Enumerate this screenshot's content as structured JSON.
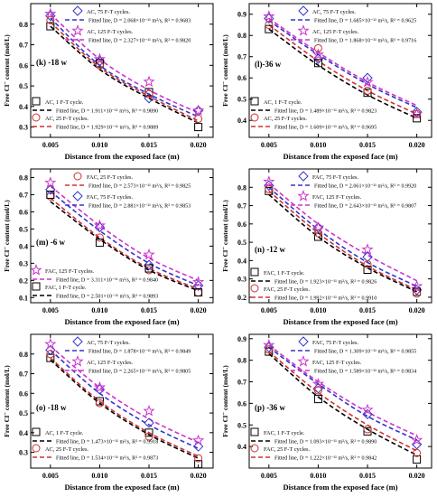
{
  "chart_data": [
    {
      "type": "line+scatter",
      "panel_label": "(k) -18 w",
      "xlabel": "Distance from the exposed face (m)",
      "ylabel": "Free Cl⁻ content (mol/L)",
      "xlim": [
        0.003,
        0.0215
      ],
      "ylim": [
        0.25,
        0.9
      ],
      "xticks": [
        "0.005",
        "0.010",
        "0.015",
        "0.020"
      ],
      "yticks": [
        "0.3",
        "0.4",
        "0.5",
        "0.6",
        "0.7",
        "0.8"
      ],
      "x": [
        0.005,
        0.01,
        0.015,
        0.02
      ],
      "series": [
        {
          "name": "AC, 75 F-T cycles.",
          "marker": "diamond",
          "color": "#3333cc",
          "values": [
            0.84,
            0.62,
            0.44,
            0.38
          ]
        },
        {
          "name": "AC, 125 F-T cycles.",
          "marker": "star",
          "color": "#cc33cc",
          "values": [
            0.85,
            0.63,
            0.52,
            0.38
          ]
        },
        {
          "name": "AC, 1 F-T cycle.",
          "marker": "square",
          "color": "#000000",
          "values": [
            0.79,
            0.61,
            0.47,
            0.3
          ]
        },
        {
          "name": "AC, 25 F-T cycles.",
          "marker": "circle",
          "color": "#cc3333",
          "values": [
            0.82,
            0.6,
            0.46,
            0.34
          ]
        }
      ],
      "fits": [
        {
          "name": "Fitted line, D = 2.068×10⁻¹¹ m²/s, R² = 0.9683",
          "color": "#3333cc",
          "dash": "5,3",
          "values": [
            0.83,
            0.6,
            0.46,
            0.35
          ]
        },
        {
          "name": "Fitted line, D = 2.327×10⁻¹¹ m²/s, R² = 0.9820",
          "color": "#cc33cc",
          "dash": "5,3",
          "values": [
            0.85,
            0.63,
            0.48,
            0.37
          ]
        },
        {
          "name": "Fitted line, D = 1.911×10⁻¹¹ m²/s, R² = 0.9890",
          "color": "#000000",
          "dash": "5,3",
          "values": [
            0.79,
            0.58,
            0.44,
            0.32
          ]
        },
        {
          "name": "Fitted line, D = 1.929×10⁻¹¹ m²/s, R² = 0.9889",
          "color": "#cc3333",
          "dash": "5,3",
          "values": [
            0.81,
            0.59,
            0.45,
            0.33
          ]
        }
      ]
    },
    {
      "type": "line+scatter",
      "panel_label": "(l)-36 w",
      "xlabel": "Distance from the exposed face (m)",
      "ylabel": "Free Cl⁻ content (mol/L)",
      "xlim": [
        0.003,
        0.0215
      ],
      "ylim": [
        0.32,
        0.95
      ],
      "xticks": [
        "0.005",
        "0.010",
        "0.015",
        "0.020"
      ],
      "yticks": [
        "0.4",
        "0.5",
        "0.6",
        "0.7",
        "0.8",
        "0.9"
      ],
      "x": [
        0.005,
        0.01,
        0.015,
        0.02
      ],
      "series": [
        {
          "name": "AC, 75 F-T cycles.",
          "marker": "diamond",
          "color": "#3333cc",
          "values": [
            0.88,
            0.69,
            0.6,
            0.44
          ]
        },
        {
          "name": "AC, 125 F-T cycles.",
          "marker": "star",
          "color": "#cc33cc",
          "values": [
            0.89,
            0.71,
            0.58,
            0.43
          ]
        },
        {
          "name": "AC, 1 F-T cycle.",
          "marker": "square",
          "color": "#000000",
          "values": [
            0.83,
            0.67,
            0.53,
            0.41
          ]
        },
        {
          "name": "AC, 25 F-T cycles.",
          "marker": "circle",
          "color": "#cc3333",
          "values": [
            0.85,
            0.74,
            0.54,
            0.43
          ]
        }
      ],
      "fits": [
        {
          "name": "Fitted line, D = 1.685×10⁻¹¹ m²/s, R² = 0.9625",
          "color": "#3333cc",
          "dash": "5,3",
          "values": [
            0.87,
            0.71,
            0.57,
            0.46
          ]
        },
        {
          "name": "Fitted line, D = 1.868×10⁻¹¹ m²/s, R² = 0.9716",
          "color": "#cc33cc",
          "dash": "5,3",
          "values": [
            0.88,
            0.72,
            0.58,
            0.47
          ]
        },
        {
          "name": "Fitted line, D = 1.489×10⁻¹¹ m²/s, R² = 0.9823",
          "color": "#000000",
          "dash": "5,3",
          "values": [
            0.83,
            0.66,
            0.52,
            0.41
          ]
        },
        {
          "name": "Fitted line, D = 1.609×10⁻¹¹ m²/s, R² = 0.9695",
          "color": "#cc3333",
          "dash": "5,3",
          "values": [
            0.85,
            0.68,
            0.54,
            0.43
          ]
        }
      ]
    },
    {
      "type": "line+scatter",
      "panel_label": "(m) -6 w",
      "xlabel": "Distance from the exposed face (m)",
      "ylabel": "Free Cl⁻ content (mol/L)",
      "xlim": [
        0.003,
        0.0215
      ],
      "ylim": [
        0.07,
        0.85
      ],
      "xticks": [
        "0.005",
        "0.010",
        "0.015",
        "0.020"
      ],
      "yticks": [
        "0.1",
        "0.2",
        "0.3",
        "0.4",
        "0.5",
        "0.6",
        "0.7",
        "0.8"
      ],
      "x": [
        0.005,
        0.01,
        0.015,
        0.02
      ],
      "series": [
        {
          "name": "FAC, 25 F-T cycles.",
          "marker": "circle",
          "color": "#cc3333",
          "values": [
            0.69,
            0.45,
            0.26,
            0.13
          ]
        },
        {
          "name": "FAC, 75 F-T cycles.",
          "marker": "diamond",
          "color": "#3333cc",
          "values": [
            0.73,
            0.51,
            0.29,
            0.17
          ]
        },
        {
          "name": "FAC, 125 F-T cycles.",
          "marker": "star",
          "color": "#cc33cc",
          "values": [
            0.77,
            0.52,
            0.35,
            0.19
          ]
        },
        {
          "name": "FAC, 1 F-T cycle.",
          "marker": "square",
          "color": "#000000",
          "values": [
            0.7,
            0.42,
            0.27,
            0.13
          ]
        }
      ],
      "fits": [
        {
          "name": "Fitted line, D = 2.573×10⁻¹¹ m²/s, R² = 0.9825",
          "color": "#cc3333",
          "dash": "5,3",
          "values": [
            0.68,
            0.45,
            0.27,
            0.15
          ]
        },
        {
          "name": "Fitted line, D = 2.881×10⁻¹¹ m²/s, R² = 0.9853",
          "color": "#3333cc",
          "dash": "5,3",
          "values": [
            0.72,
            0.49,
            0.3,
            0.17
          ]
        },
        {
          "name": "Fitted line, D = 3.311×10⁻¹¹ m²/s, R² = 0.9840",
          "color": "#cc33cc",
          "dash": "5,3",
          "values": [
            0.75,
            0.52,
            0.33,
            0.2
          ]
        },
        {
          "name": "Fitted line, D = 2.501×10⁻¹¹ m²/s, R² = 0.9893",
          "color": "#000000",
          "dash": "5,3",
          "values": [
            0.66,
            0.44,
            0.26,
            0.14
          ]
        }
      ]
    },
    {
      "type": "line+scatter",
      "panel_label": "(n) -12 w",
      "xlabel": "Distance from the exposed face (m)",
      "ylabel": "Free Cl⁻ content (mol/L)",
      "xlim": [
        0.003,
        0.0215
      ],
      "ylim": [
        0.17,
        0.9
      ],
      "xticks": [
        "0.005",
        "0.010",
        "0.015",
        "0.020"
      ],
      "yticks": [
        "0.2",
        "0.3",
        "0.4",
        "0.5",
        "0.6",
        "0.7",
        "0.8"
      ],
      "x": [
        0.005,
        0.01,
        0.015,
        0.02
      ],
      "series": [
        {
          "name": "FAC, 75 F-T cycles.",
          "marker": "diamond",
          "color": "#3333cc",
          "values": [
            0.81,
            0.58,
            0.42,
            0.24
          ]
        },
        {
          "name": "FAC, 125 F-T cycles.",
          "marker": "star",
          "color": "#cc33cc",
          "values": [
            0.83,
            0.58,
            0.46,
            0.26
          ]
        },
        {
          "name": "FAC, 1 F-T cycle.",
          "marker": "square",
          "color": "#000000",
          "values": [
            0.78,
            0.53,
            0.35,
            0.23
          ]
        },
        {
          "name": "FAC, 25 F-T cycles.",
          "marker": "circle",
          "color": "#cc3333",
          "values": [
            0.79,
            0.55,
            0.38,
            0.22
          ]
        }
      ],
      "fits": [
        {
          "name": "Fitted line, D = 2.061×10⁻¹¹ m²/s, R² = 0.9920",
          "color": "#3333cc",
          "dash": "5,3",
          "values": [
            0.8,
            0.57,
            0.39,
            0.26
          ]
        },
        {
          "name": "Fitted line, D = 2.643×10⁻¹¹ m²/s, R² = 0.9807",
          "color": "#cc33cc",
          "dash": "5,3",
          "values": [
            0.82,
            0.6,
            0.43,
            0.29
          ]
        },
        {
          "name": "Fitted line, D = 1.923×10⁻¹¹ m²/s, R² = 0.9826",
          "color": "#000000",
          "dash": "5,3",
          "values": [
            0.76,
            0.53,
            0.36,
            0.23
          ]
        },
        {
          "name": "Fitted line, D = 1.992×10⁻¹¹ m²/s, R² = 0.9910",
          "color": "#cc3333",
          "dash": "5,3",
          "values": [
            0.78,
            0.55,
            0.37,
            0.24
          ]
        }
      ]
    },
    {
      "type": "line+scatter",
      "panel_label": "(o) -18 w",
      "xlabel": "Distance from the exposed face (m)",
      "ylabel": "Free Cl⁻ content (mol/L)",
      "xlim": [
        0.003,
        0.0215
      ],
      "ylim": [
        0.22,
        0.9
      ],
      "xticks": [
        "0.005",
        "0.010",
        "0.015",
        "0.020"
      ],
      "yticks": [
        "0.3",
        "0.4",
        "0.5",
        "0.6",
        "0.7",
        "0.8"
      ],
      "x": [
        0.005,
        0.01,
        0.015,
        0.02
      ],
      "series": [
        {
          "name": "AC, 75 F-T cycles.",
          "marker": "diamond",
          "color": "#3333cc",
          "values": [
            0.82,
            0.62,
            0.45,
            0.33
          ]
        },
        {
          "name": "AC, 125 F-T cycles.",
          "marker": "star",
          "color": "#cc33cc",
          "values": [
            0.85,
            0.63,
            0.51,
            0.36
          ]
        },
        {
          "name": "AC, 1 F-T cycle.",
          "marker": "square",
          "color": "#000000",
          "values": [
            0.78,
            0.56,
            0.4,
            0.24
          ]
        },
        {
          "name": "AC, 25 F-T cycles.",
          "marker": "circle",
          "color": "#cc3333",
          "values": [
            0.8,
            0.55,
            0.38,
            0.27
          ]
        }
      ],
      "fits": [
        {
          "name": "Fitted line, D = 1.878×10⁻¹¹ m²/s, R² = 0.9849",
          "color": "#3333cc",
          "dash": "5,3",
          "values": [
            0.82,
            0.6,
            0.44,
            0.32
          ]
        },
        {
          "name": "Fitted line, D = 2.265×10⁻¹¹ m²/s, R² = 0.9805",
          "color": "#cc33cc",
          "dash": "5,3",
          "values": [
            0.84,
            0.63,
            0.47,
            0.35
          ]
        },
        {
          "name": "Fitted line, D = 1.473×10⁻¹¹ m²/s, R² = 0.9918",
          "color": "#000000",
          "dash": "5,3",
          "values": [
            0.77,
            0.55,
            0.39,
            0.27
          ]
        },
        {
          "name": "Fitted line, D = 1.534×10⁻¹¹ m²/s, R² = 0.9873",
          "color": "#cc3333",
          "dash": "5,3",
          "values": [
            0.78,
            0.56,
            0.4,
            0.28
          ]
        }
      ]
    },
    {
      "type": "line+scatter",
      "panel_label": "(p) -36 w",
      "xlabel": "Distance from the exposed face (m)",
      "ylabel": "Free Cl⁻ content (mol/L)",
      "xlim": [
        0.003,
        0.0215
      ],
      "ylim": [
        0.3,
        0.92
      ],
      "xticks": [
        "0.005",
        "0.010",
        "0.015",
        "0.020"
      ],
      "yticks": [
        "0.4",
        "0.5",
        "0.6",
        "0.7",
        "0.8",
        "0.9"
      ],
      "x": [
        0.005,
        0.01,
        0.015,
        0.02
      ],
      "series": [
        {
          "name": "FAC, 75 F-T cycles.",
          "marker": "diamond",
          "color": "#3333cc",
          "values": [
            0.86,
            0.67,
            0.55,
            0.41
          ]
        },
        {
          "name": "FAC, 125 F-T cycles.",
          "marker": "star",
          "color": "#cc33cc",
          "values": [
            0.87,
            0.69,
            0.57,
            0.43
          ]
        },
        {
          "name": "FAC, 1 F-T cycle.",
          "marker": "square",
          "color": "#000000",
          "values": [
            0.84,
            0.62,
            0.47,
            0.34
          ]
        },
        {
          "name": "FAC, 25 F-T cycles.",
          "marker": "circle",
          "color": "#cc3333",
          "values": [
            0.85,
            0.66,
            0.48,
            0.37
          ]
        }
      ],
      "fits": [
        {
          "name": "Fitted line, D = 1.309×10⁻¹¹ m²/s, R² = 0.9855",
          "color": "#3333cc",
          "dash": "5,3",
          "values": [
            0.86,
            0.69,
            0.54,
            0.43
          ]
        },
        {
          "name": "Fitted line, D = 1.589×10⁻¹¹ m²/s, R² = 0.9834",
          "color": "#cc33cc",
          "dash": "5,3",
          "values": [
            0.87,
            0.7,
            0.56,
            0.45
          ]
        },
        {
          "name": "Fitted line, D = 1.093×10⁻¹¹ m²/s, R² = 0.9890",
          "color": "#000000",
          "dash": "5,3",
          "values": [
            0.83,
            0.63,
            0.48,
            0.36
          ]
        },
        {
          "name": "Fitted line, D = 1.222×10⁻¹¹ m²/s, R² = 0.9842",
          "color": "#cc3333",
          "dash": "5,3",
          "values": [
            0.84,
            0.65,
            0.5,
            0.38
          ]
        }
      ]
    }
  ]
}
